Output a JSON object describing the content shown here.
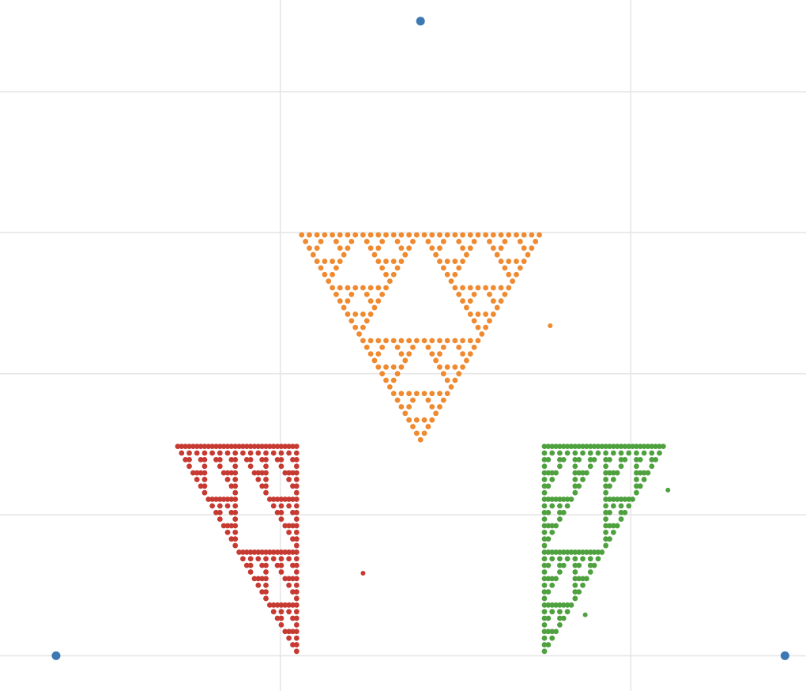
{
  "chart_data": {
    "type": "scatter",
    "title": "",
    "xlabel": "",
    "ylabel": "",
    "xlim": [
      -0.4,
      0.75
    ],
    "ylim": [
      -0.05,
      0.93
    ],
    "grid": true,
    "grid_color": "#e6e6e6",
    "x_gridlines": [
      0,
      0.5
    ],
    "y_gridlines": [
      0,
      0.2,
      0.4,
      0.6,
      0.8
    ],
    "legend": "none",
    "fractal_depth": 5,
    "series": [
      {
        "role": "corner-vertices",
        "color": "#3b78b4",
        "points": [
          {
            "x": 0.2,
            "y": 0.9
          },
          {
            "x": -0.32,
            "y": 0.0
          },
          {
            "x": 0.72,
            "y": 0.0
          }
        ]
      },
      {
        "role": "top-cluster",
        "color": "#ef8a30",
        "vertices": [
          {
            "x": 0.025,
            "y": 0.6
          },
          {
            "x": 0.375,
            "y": 0.6
          },
          {
            "x": 0.2,
            "y": 0.3
          }
        ],
        "extra_points": [
          {
            "x": 0.385,
            "y": 0.468
          }
        ]
      },
      {
        "role": "left-cluster",
        "color": "#c63a32",
        "vertices": [
          {
            "x": -0.15,
            "y": 0.3
          },
          {
            "x": 0.025,
            "y": 0.3
          },
          {
            "x": 0.025,
            "y": 0.0
          }
        ],
        "extra_points": [
          {
            "x": 0.118,
            "y": 0.117
          }
        ]
      },
      {
        "role": "right-cluster",
        "color": "#4fa13f",
        "vertices": [
          {
            "x": 0.375,
            "y": 0.3
          },
          {
            "x": 0.55,
            "y": 0.3
          },
          {
            "x": 0.375,
            "y": 0.0
          }
        ],
        "extra_points": [
          {
            "x": 0.553,
            "y": 0.235
          },
          {
            "x": 0.435,
            "y": 0.058
          }
        ]
      }
    ]
  }
}
